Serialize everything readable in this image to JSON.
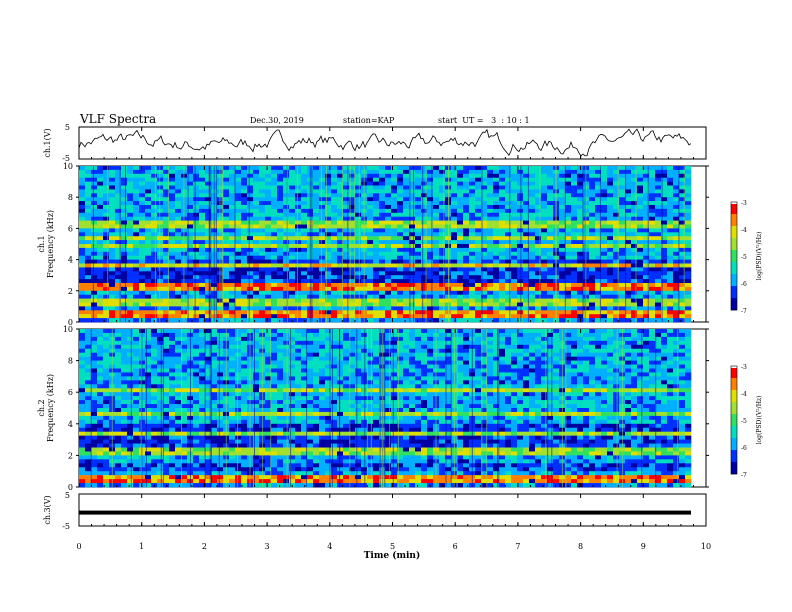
{
  "header": {
    "title": "VLF Spectra",
    "date": "Dec.30, 2019",
    "station": "station=KAP",
    "start": "start  UT =   3  : 10 : 1"
  },
  "colors": {
    "waveform": "#000000",
    "colormap": [
      "#000000",
      "#0000a0",
      "#0030ff",
      "#00b0ff",
      "#00e0c0",
      "#30e060",
      "#a0e030",
      "#e0e000",
      "#ff8000",
      "#ff0000",
      "#ffffff"
    ]
  },
  "chart_data": [
    {
      "type": "line",
      "name": "ch1-waveform",
      "ylabel": "ch.1(V)",
      "ylim": [
        -5,
        5
      ],
      "y_ticks": [
        "5",
        "-5"
      ],
      "xlim": [
        0,
        10
      ]
    },
    {
      "type": "heatmap",
      "name": "ch1-spectrogram",
      "ylabel": "ch.1\nFrequency (kHz)",
      "ylim": [
        0,
        10
      ],
      "y_ticks": [
        "0",
        "2",
        "4",
        "6",
        "8",
        "10"
      ],
      "xlim": [
        0,
        10
      ],
      "bands_khz": [
        {
          "f": 0.5,
          "dB": "high"
        },
        {
          "f": 1.2,
          "dB": "mid"
        },
        {
          "f": 2.3,
          "dB": "high"
        },
        {
          "f": 2.9,
          "dB": "low"
        },
        {
          "f": 3.6,
          "dB": "mid-high"
        },
        {
          "f": 4.9,
          "dB": "mid"
        },
        {
          "f": 5.4,
          "dB": "mid"
        },
        {
          "f": 6.3,
          "dB": "mid"
        }
      ],
      "colorbar": {
        "label": "log(PSD)(V²/Hz)",
        "ticks": [
          "-3",
          "-4",
          "-5",
          "-6",
          "-7"
        ],
        "range": [
          -7,
          -3
        ]
      }
    },
    {
      "type": "heatmap",
      "name": "ch2-spectrogram",
      "ylabel": "ch.2\nFrequency (kHz)",
      "ylim": [
        0,
        10
      ],
      "y_ticks": [
        "0",
        "2",
        "4",
        "6",
        "8",
        "10"
      ],
      "xlim": [
        0,
        10
      ],
      "bands_khz": [
        {
          "f": 0.5,
          "dB": "high"
        },
        {
          "f": 1.3,
          "dB": "low"
        },
        {
          "f": 2.2,
          "dB": "mid"
        },
        {
          "f": 3.4,
          "dB": "mid"
        },
        {
          "f": 4.6,
          "dB": "mid"
        },
        {
          "f": 6.1,
          "dB": "mid"
        }
      ],
      "colorbar": {
        "label": "log(PSD)(V²/Hz)",
        "ticks": [
          "-3",
          "-4",
          "-5",
          "-6",
          "-7"
        ],
        "range": [
          -7,
          -3
        ]
      }
    },
    {
      "type": "line",
      "name": "ch3-waveform",
      "ylabel": "ch.3(V)",
      "ylim": [
        -5,
        5
      ],
      "y_ticks": [
        "5",
        "-5"
      ],
      "xlim": [
        0,
        10
      ],
      "level": -0.8,
      "xlabel": "Time  (min)",
      "x_ticks": [
        "0",
        "1",
        "2",
        "3",
        "4",
        "5",
        "6",
        "7",
        "8",
        "9",
        "10"
      ]
    }
  ]
}
